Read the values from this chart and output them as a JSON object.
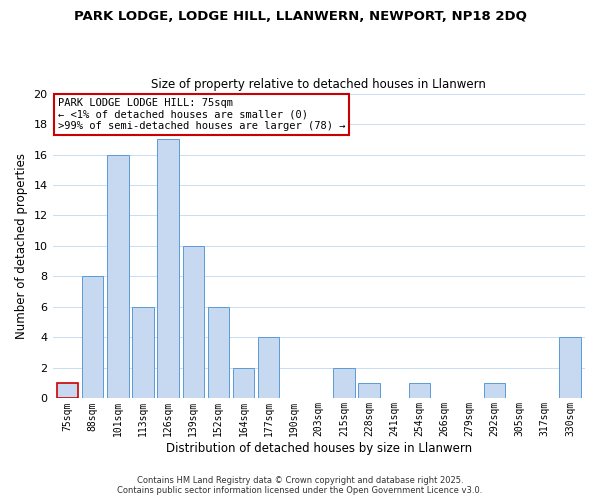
{
  "title": "PARK LODGE, LODGE HILL, LLANWERN, NEWPORT, NP18 2DQ",
  "subtitle": "Size of property relative to detached houses in Llanwern",
  "xlabel": "Distribution of detached houses by size in Llanwern",
  "ylabel": "Number of detached properties",
  "bar_labels": [
    "75sqm",
    "88sqm",
    "101sqm",
    "113sqm",
    "126sqm",
    "139sqm",
    "152sqm",
    "164sqm",
    "177sqm",
    "190sqm",
    "203sqm",
    "215sqm",
    "228sqm",
    "241sqm",
    "254sqm",
    "266sqm",
    "279sqm",
    "292sqm",
    "305sqm",
    "317sqm",
    "330sqm"
  ],
  "bar_values": [
    1,
    8,
    16,
    6,
    17,
    10,
    6,
    2,
    4,
    0,
    0,
    2,
    1,
    0,
    1,
    0,
    0,
    1,
    0,
    0,
    4
  ],
  "bar_color": "#c6d9f0",
  "bar_edge_color": "#5b9bd5",
  "highlight_index": 0,
  "highlight_edge_color": "#cc0000",
  "annotation_title": "PARK LODGE LODGE HILL: 75sqm",
  "annotation_line1": "← <1% of detached houses are smaller (0)",
  "annotation_line2": ">99% of semi-detached houses are larger (78) →",
  "annotation_box_edge_color": "#cc0000",
  "ylim": [
    0,
    20
  ],
  "yticks": [
    0,
    2,
    4,
    6,
    8,
    10,
    12,
    14,
    16,
    18,
    20
  ],
  "footer_line1": "Contains HM Land Registry data © Crown copyright and database right 2025.",
  "footer_line2": "Contains public sector information licensed under the Open Government Licence v3.0.",
  "background_color": "#ffffff",
  "grid_color": "#c8ddf0"
}
